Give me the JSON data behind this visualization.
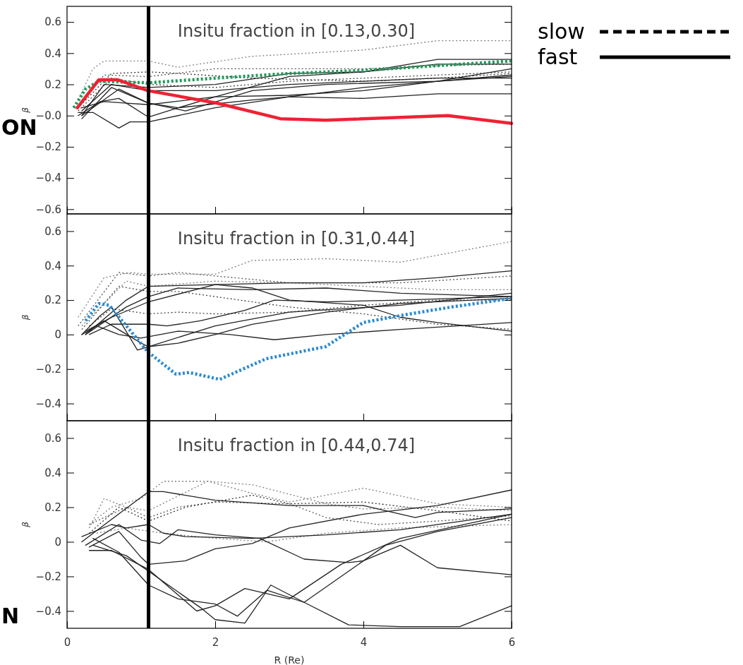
{
  "chart_data": [
    {
      "type": "line",
      "title": "Insitu fraction in [0.13,0.30]",
      "ylabel": "β",
      "xlim": [
        0,
        6
      ],
      "xticks": [
        0,
        2,
        4,
        6
      ],
      "ylim": [
        -0.63,
        0.7
      ],
      "yticks": [
        -0.6,
        -0.4,
        -0.2,
        {
          "value": 0,
          "label": "−0.0"
        },
        0.2,
        0.4,
        0.6
      ],
      "tick_labels": "y",
      "legend": "top right",
      "annotations": [
        "ON"
      ],
      "ref_lines": [
        {
          "axis": "x",
          "value": 1.1,
          "color": "#000000"
        }
      ],
      "series": [
        {
          "name": "slow",
          "line_style": "dotted",
          "color": "#808080",
          "x": [
            0.15,
            0.35,
            0.5,
            1.1,
            1.5,
            2.5,
            4.0,
            5.0,
            6.0
          ],
          "values": [
            0.1,
            0.3,
            0.35,
            0.35,
            0.31,
            0.38,
            0.42,
            0.48,
            0.48
          ]
        },
        {
          "line_style": "dotted",
          "color": "#555555",
          "x": [
            0.15,
            0.5,
            1.1,
            2.0,
            3.0,
            4.0,
            5.0,
            6.0
          ],
          "values": [
            0.05,
            0.26,
            0.25,
            0.3,
            0.3,
            0.3,
            0.32,
            0.33
          ]
        },
        {
          "line_style": "dotted",
          "color": "#333333",
          "x": [
            0.15,
            0.6,
            1.1,
            1.5,
            2.5,
            4.0,
            5.0,
            6.0
          ],
          "values": [
            0.05,
            0.27,
            0.28,
            0.27,
            0.24,
            0.22,
            0.24,
            0.27
          ]
        },
        {
          "line_style": "dotted",
          "color": "#444444",
          "x": [
            0.15,
            0.6,
            1.1,
            2.0,
            3.0,
            4.0,
            5.0,
            6.0
          ],
          "values": [
            0.03,
            0.24,
            0.2,
            0.18,
            0.22,
            0.24,
            0.26,
            0.28
          ]
        },
        {
          "name": "fast",
          "line_style": "solid",
          "color": "#222222",
          "x": [
            0.2,
            0.5,
            1.1,
            2.0,
            3.0,
            4.0,
            5.0,
            6.0
          ],
          "values": [
            0.0,
            0.2,
            0.18,
            0.2,
            0.27,
            0.28,
            0.36,
            0.36
          ]
        },
        {
          "line_style": "solid",
          "color": "#222222",
          "x": [
            0.2,
            0.6,
            1.1,
            1.5,
            2.0,
            3.0,
            4.0,
            5.0,
            6.0
          ],
          "values": [
            -0.02,
            0.18,
            0.08,
            0.05,
            0.12,
            0.25,
            0.28,
            0.33,
            0.33
          ]
        },
        {
          "line_style": "solid",
          "color": "#222222",
          "x": [
            0.2,
            0.7,
            1.1,
            1.6,
            2.5,
            3.5,
            5.0,
            6.0
          ],
          "values": [
            0.0,
            0.17,
            0.08,
            0.03,
            0.16,
            0.2,
            0.22,
            0.25
          ]
        },
        {
          "line_style": "solid",
          "color": "#222222",
          "x": [
            0.2,
            0.5,
            0.8,
            1.1,
            2.0,
            3.0,
            4.0,
            5.0,
            6.0
          ],
          "values": [
            0.05,
            0.09,
            0.08,
            0.07,
            0.12,
            0.13,
            0.16,
            0.22,
            0.26
          ]
        },
        {
          "line_style": "solid",
          "color": "#222222",
          "x": [
            0.15,
            0.45,
            0.7,
            1.1,
            1.5,
            2.5,
            3.0,
            4.0,
            5.0,
            6.0
          ],
          "values": [
            0.0,
            0.09,
            0.11,
            -0.01,
            0.05,
            0.1,
            0.12,
            0.11,
            0.14,
            0.14
          ]
        },
        {
          "line_style": "solid",
          "color": "#222222",
          "x": [
            0.15,
            0.35,
            0.7,
            0.85,
            1.1,
            2.0,
            3.0,
            4.0,
            5.0,
            6.0
          ],
          "values": [
            0.02,
            0.02,
            -0.08,
            -0.04,
            -0.04,
            0.05,
            0.12,
            0.18,
            0.22,
            0.3
          ]
        },
        {
          "line_style": "solid",
          "color": "#222222",
          "x": [
            0.2,
            0.6,
            1.1,
            2.0,
            3.0,
            4.0,
            5.0,
            6.0
          ],
          "values": [
            0.03,
            0.2,
            0.16,
            0.16,
            0.2,
            0.22,
            0.24,
            0.24
          ]
        },
        {
          "line_style": "dotted",
          "color": "#1f9a5a",
          "x": [
            0.09,
            0.25,
            0.43,
            1.1,
            2.0,
            3.0,
            4.0,
            5.0,
            6.0
          ],
          "values": [
            0.05,
            0.17,
            0.22,
            0.21,
            0.24,
            0.27,
            0.29,
            0.32,
            0.35
          ]
        },
        {
          "line_style": "solid",
          "color": "#ee2233",
          "x": [
            0.14,
            0.43,
            0.68,
            1.09,
            2.02,
            2.88,
            3.49,
            5.14,
            6.0
          ],
          "values": [
            0.05,
            0.23,
            0.23,
            0.16,
            0.08,
            -0.02,
            -0.03,
            0.0,
            -0.05
          ]
        }
      ]
    },
    {
      "type": "line",
      "title": "Insitu fraction in [0.31,0.44]",
      "ylabel": "β",
      "xlim": [
        0,
        6
      ],
      "xticks": [
        0,
        2,
        4,
        6
      ],
      "ylim": [
        -0.5,
        0.7
      ],
      "yticks": [
        -0.4,
        -0.2,
        0,
        0.2,
        0.4,
        0.6
      ],
      "tick_labels": "y",
      "ref_lines": [
        {
          "axis": "x",
          "value": 1.1,
          "color": "#000000"
        }
      ],
      "series": [
        {
          "line_style": "dotted",
          "color": "#808080",
          "x": [
            0.15,
            0.5,
            0.85,
            1.1,
            2.0,
            2.5,
            3.5,
            4.5,
            6.0
          ],
          "values": [
            0.1,
            0.33,
            0.36,
            0.35,
            0.35,
            0.43,
            0.44,
            0.42,
            0.54
          ]
        },
        {
          "line_style": "dotted",
          "color": "#555555",
          "x": [
            0.15,
            0.7,
            1.1,
            1.5,
            2.0,
            3.0,
            4.5,
            6.0
          ],
          "values": [
            0.05,
            0.36,
            0.34,
            0.36,
            0.34,
            0.3,
            0.3,
            0.34
          ]
        },
        {
          "line_style": "dotted",
          "color": "#808080",
          "x": [
            0.2,
            0.8,
            1.1,
            2.0,
            3.0,
            4.0,
            5.0,
            6.0
          ],
          "values": [
            0.05,
            0.31,
            0.28,
            0.31,
            0.3,
            0.28,
            0.26,
            0.26
          ]
        },
        {
          "line_style": "dotted",
          "color": "#444444",
          "x": [
            0.2,
            0.7,
            1.1,
            1.5,
            2.0,
            3.0,
            4.0,
            5.0,
            6.0
          ],
          "values": [
            0.03,
            0.28,
            0.25,
            0.25,
            0.22,
            0.16,
            0.12,
            0.06,
            0.03
          ]
        },
        {
          "line_style": "dotted",
          "color": "#444444",
          "x": [
            0.3,
            0.6,
            1.1,
            1.5,
            2.0,
            3.0,
            4.0,
            5.0,
            6.0
          ],
          "values": [
            0.05,
            0.15,
            0.12,
            0.13,
            0.12,
            0.13,
            0.17,
            0.2,
            0.2
          ]
        },
        {
          "line_style": "solid",
          "color": "#222222",
          "x": [
            0.25,
            0.8,
            1.1,
            2.0,
            3.0,
            4.0,
            5.0,
            6.0
          ],
          "values": [
            0.0,
            0.2,
            0.28,
            0.29,
            0.3,
            0.3,
            0.33,
            0.37
          ]
        },
        {
          "line_style": "solid",
          "color": "#222222",
          "x": [
            0.25,
            0.8,
            1.1,
            1.5,
            2.5,
            3.5,
            4.5,
            6.0
          ],
          "values": [
            0.0,
            0.16,
            0.22,
            0.27,
            0.26,
            0.27,
            0.24,
            0.22
          ]
        },
        {
          "line_style": "solid",
          "color": "#222222",
          "x": [
            0.25,
            0.6,
            1.1,
            2.0,
            2.5,
            3.0,
            4.0,
            4.5,
            5.0,
            6.0
          ],
          "values": [
            0.02,
            0.1,
            0.19,
            0.29,
            0.27,
            0.2,
            0.17,
            0.1,
            0.07,
            0.02
          ]
        },
        {
          "line_style": "solid",
          "color": "#222222",
          "x": [
            0.2,
            0.45,
            0.6,
            0.95,
            1.1,
            1.5,
            2.0,
            2.5,
            3.5,
            4.5,
            6.0
          ],
          "values": [
            0.0,
            0.11,
            0.16,
            -0.09,
            -0.07,
            -0.05,
            0.0,
            0.06,
            0.13,
            0.18,
            0.21
          ]
        },
        {
          "line_style": "solid",
          "color": "#222222",
          "x": [
            0.3,
            0.6,
            1.1,
            1.35,
            1.8,
            2.4,
            2.8,
            3.5,
            4.5,
            6.0
          ],
          "values": [
            0.0,
            0.06,
            0.06,
            0.05,
            0.08,
            0.14,
            0.2,
            0.19,
            0.2,
            0.22
          ]
        },
        {
          "line_style": "solid",
          "color": "#222222",
          "x": [
            0.2,
            0.4,
            0.7,
            1.0,
            1.5,
            2.2,
            2.8,
            3.5,
            4.5,
            6.0
          ],
          "values": [
            0.0,
            0.05,
            0.0,
            -0.02,
            0.02,
            0.0,
            -0.03,
            0.0,
            0.03,
            0.07
          ]
        },
        {
          "line_style": "solid",
          "color": "#222222",
          "x": [
            0.25,
            0.5,
            1.0,
            1.1,
            2.0,
            3.0,
            4.5,
            6.0
          ],
          "values": [
            0.01,
            0.08,
            -0.05,
            -0.07,
            0.05,
            0.13,
            0.17,
            0.24
          ]
        },
        {
          "line_style": "dotted",
          "color": "#2a8ad0",
          "x": [
            0.25,
            0.43,
            0.57,
            1.09,
            1.47,
            1.65,
            2.06,
            2.69,
            3.49,
            4.0,
            4.5,
            5.19,
            6.0
          ],
          "values": [
            0.08,
            0.18,
            0.17,
            -0.1,
            -0.23,
            -0.22,
            -0.26,
            -0.14,
            -0.07,
            0.07,
            0.11,
            0.16,
            0.21
          ]
        }
      ]
    },
    {
      "type": "line",
      "title": "Insitu fraction in [0.44,0.74]",
      "xlabel": "R (Re)",
      "ylabel": "β",
      "xlim": [
        0,
        6
      ],
      "xticks": [
        0,
        2,
        4,
        6
      ],
      "ylim": [
        -0.5,
        0.7
      ],
      "yticks": [
        -0.4,
        -0.2,
        0,
        0.2,
        0.4,
        0.6
      ],
      "annotations": [
        "N"
      ],
      "ref_lines": [
        {
          "axis": "x",
          "value": 1.1,
          "color": "#000000"
        }
      ],
      "series": [
        {
          "line_style": "dotted",
          "color": "#808080",
          "x": [
            0.3,
            0.6,
            1.0,
            1.3,
            1.9,
            2.5,
            3.5,
            4.0,
            5.0,
            6.0
          ],
          "values": [
            0.1,
            0.2,
            0.25,
            0.35,
            0.35,
            0.33,
            0.22,
            0.19,
            0.2,
            0.18
          ]
        },
        {
          "line_style": "dotted",
          "color": "#808080",
          "x": [
            0.3,
            0.5,
            0.8,
            1.1,
            1.9,
            2.5,
            3.0,
            4.0,
            5.0,
            6.0
          ],
          "values": [
            0.08,
            0.25,
            0.2,
            0.18,
            0.35,
            0.28,
            0.23,
            0.31,
            0.22,
            0.2
          ]
        },
        {
          "line_style": "dotted",
          "color": "#555555",
          "x": [
            0.3,
            0.8,
            1.1,
            1.5,
            2.0,
            3.0,
            3.5,
            4.2,
            5.0,
            6.0
          ],
          "values": [
            0.1,
            0.2,
            0.14,
            0.2,
            0.23,
            0.22,
            0.14,
            0.1,
            0.12,
            0.15
          ]
        },
        {
          "line_style": "dotted",
          "color": "#333333",
          "x": [
            0.3,
            0.7,
            1.1,
            1.6,
            2.5,
            3.0,
            4.0,
            5.0,
            6.0
          ],
          "values": [
            0.05,
            0.2,
            0.12,
            0.2,
            0.27,
            0.22,
            0.23,
            0.18,
            0.12
          ]
        },
        {
          "line_style": "dotted",
          "color": "#808080",
          "x": [
            0.4,
            0.8,
            1.3,
            2.0,
            2.7,
            3.5,
            4.5,
            6.0
          ],
          "values": [
            0.05,
            0.08,
            0.05,
            0.02,
            0.0,
            0.05,
            0.08,
            0.1
          ]
        },
        {
          "line_style": "solid",
          "color": "#222222",
          "x": [
            0.2,
            0.6,
            1.1,
            1.3,
            2.0,
            3.0,
            4.0,
            4.7,
            5.0,
            6.0
          ],
          "values": [
            0.0,
            0.13,
            0.29,
            0.29,
            0.24,
            0.21,
            0.21,
            0.14,
            0.17,
            0.19
          ]
        },
        {
          "line_style": "solid",
          "color": "#222222",
          "x": [
            0.2,
            0.6,
            0.8,
            1.1,
            1.3,
            1.6,
            2.5,
            3.5,
            4.5,
            6.0
          ],
          "values": [
            0.03,
            0.1,
            0.08,
            0.1,
            0.05,
            0.03,
            0.02,
            0.04,
            0.07,
            0.16
          ]
        },
        {
          "line_style": "solid",
          "color": "#222222",
          "x": [
            0.25,
            0.7,
            1.0,
            1.25,
            1.5,
            2.0,
            2.6,
            3.2,
            3.8,
            4.0,
            4.5,
            5.0,
            6.0
          ],
          "values": [
            -0.02,
            0.1,
            0.01,
            -0.01,
            0.07,
            0.04,
            0.02,
            -0.1,
            -0.12,
            -0.11,
            -0.02,
            -0.15,
            -0.19
          ]
        },
        {
          "line_style": "solid",
          "color": "#222222",
          "x": [
            0.3,
            0.7,
            1.0,
            1.1,
            1.6,
            2.0,
            2.5,
            3.0,
            4.0,
            5.0,
            6.0
          ],
          "values": [
            -0.03,
            0.06,
            -0.09,
            -0.13,
            -0.11,
            -0.04,
            -0.01,
            0.08,
            0.16,
            0.21,
            0.3
          ]
        },
        {
          "line_style": "solid",
          "color": "#222222",
          "x": [
            0.3,
            0.6,
            1.1,
            1.75,
            2.0,
            2.4,
            3.0,
            3.7,
            4.5,
            6.0
          ],
          "values": [
            -0.05,
            -0.05,
            -0.16,
            -0.4,
            -0.37,
            -0.27,
            -0.33,
            -0.13,
            0.02,
            0.16
          ]
        },
        {
          "line_style": "solid",
          "color": "#222222",
          "x": [
            0.35,
            0.8,
            1.2,
            1.8,
            2.0,
            2.4,
            2.75,
            3.2,
            3.8,
            4.5,
            5.3,
            6.0
          ],
          "values": [
            -0.02,
            -0.08,
            -0.2,
            -0.38,
            -0.45,
            -0.47,
            -0.25,
            -0.35,
            -0.48,
            -0.49,
            -0.49,
            -0.37
          ]
        },
        {
          "line_style": "solid",
          "color": "#222222",
          "x": [
            0.35,
            0.7,
            1.1,
            1.5,
            2.0,
            2.3,
            2.7,
            3.2,
            4.3,
            5.0,
            6.0
          ],
          "values": [
            0.02,
            -0.06,
            -0.25,
            -0.33,
            -0.36,
            -0.43,
            -0.28,
            -0.35,
            -0.02,
            0.06,
            0.14
          ]
        }
      ]
    }
  ]
}
